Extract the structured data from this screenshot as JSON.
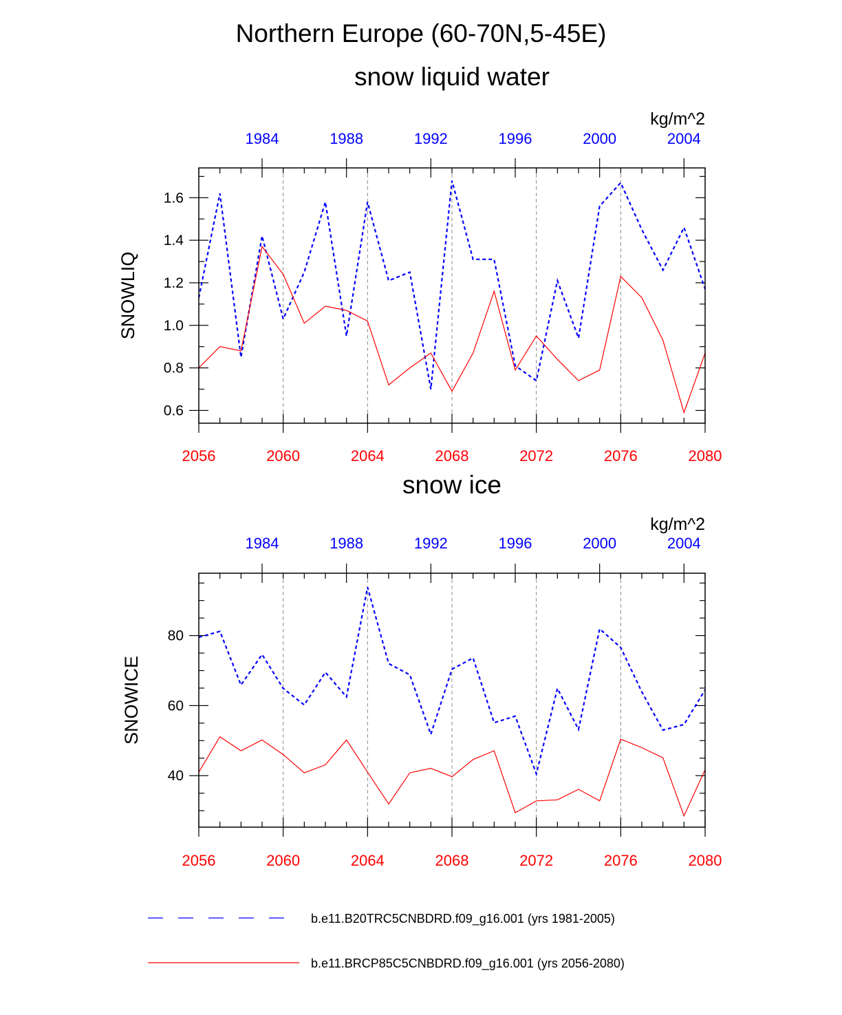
{
  "page_title": "Northern Europe (60-70N,5-45E)",
  "legend": {
    "hist_label": "b.e11.B20TRC5CNBDRD.f09_g16.001 (yrs 1981-2005)",
    "future_label": "b.e11.BRCP85C5CNBDRD.f09_g16.001 (yrs 2056-2080)"
  },
  "colors": {
    "hist": "#0000ff",
    "future": "#ff0000",
    "axis": "#000000",
    "grid": "#888888"
  },
  "chart_data": [
    {
      "type": "line",
      "title": "snow liquid water",
      "ylabel": "SNOWLIQ",
      "units": "kg/m^2",
      "ylim": [
        0.54,
        1.74
      ],
      "yticks": [
        0.6,
        0.8,
        1.0,
        1.2,
        1.4,
        1.6
      ],
      "ytick_labels": [
        "0.6",
        "0.8",
        "1.0",
        "1.2",
        "1.4",
        "1.6"
      ],
      "yminor_step": 0.1,
      "x_bottom": [
        2056,
        2057,
        2058,
        2059,
        2060,
        2061,
        2062,
        2063,
        2064,
        2065,
        2066,
        2067,
        2068,
        2069,
        2070,
        2071,
        2072,
        2073,
        2074,
        2075,
        2076,
        2077,
        2078,
        2079,
        2080
      ],
      "x_bottom_ticks": [
        "2056",
        "2060",
        "2064",
        "2068",
        "2072",
        "2076",
        "2080"
      ],
      "x_top": [
        1981,
        1982,
        1983,
        1984,
        1985,
        1986,
        1987,
        1988,
        1989,
        1990,
        1991,
        1992,
        1993,
        1994,
        1995,
        1996,
        1997,
        1998,
        1999,
        2000,
        2001,
        2002,
        2003,
        2004,
        2005
      ],
      "x_top_ticks": [
        "1984",
        "1988",
        "1992",
        "1996",
        "2000",
        "2004"
      ],
      "series": [
        {
          "name": "b.e11.B20TRC5CNBDRD.f09_g16.001 (yrs 1981-2005)",
          "axis": "top",
          "style": "dashed",
          "values": [
            1.13,
            1.62,
            0.85,
            1.42,
            1.03,
            1.25,
            1.58,
            0.95,
            1.58,
            1.21,
            1.25,
            0.7,
            1.68,
            1.31,
            1.31,
            0.81,
            0.74,
            1.21,
            0.94,
            1.56,
            1.67,
            1.45,
            1.26,
            1.46,
            1.17
          ]
        },
        {
          "name": "b.e11.BRCP85C5CNBDRD.f09_g16.001 (yrs 2056-2080)",
          "axis": "bottom",
          "style": "solid",
          "values": [
            0.8,
            0.9,
            0.88,
            1.37,
            1.24,
            1.01,
            1.09,
            1.07,
            1.02,
            0.72,
            0.8,
            0.87,
            0.69,
            0.87,
            1.16,
            0.79,
            0.95,
            0.84,
            0.74,
            0.79,
            1.23,
            1.13,
            0.93,
            0.59,
            0.87
          ]
        }
      ]
    },
    {
      "type": "line",
      "title": "snow ice",
      "ylabel": "SNOWICE",
      "units": "kg/m^2",
      "ylim": [
        25.3,
        97.8
      ],
      "yticks": [
        40,
        60,
        80
      ],
      "ytick_labels": [
        "40",
        "60",
        "80"
      ],
      "yminor_step": 5,
      "x_bottom": [
        2056,
        2057,
        2058,
        2059,
        2060,
        2061,
        2062,
        2063,
        2064,
        2065,
        2066,
        2067,
        2068,
        2069,
        2070,
        2071,
        2072,
        2073,
        2074,
        2075,
        2076,
        2077,
        2078,
        2079,
        2080
      ],
      "x_bottom_ticks": [
        "2056",
        "2060",
        "2064",
        "2068",
        "2072",
        "2076",
        "2080"
      ],
      "x_top": [
        1981,
        1982,
        1983,
        1984,
        1985,
        1986,
        1987,
        1988,
        1989,
        1990,
        1991,
        1992,
        1993,
        1994,
        1995,
        1996,
        1997,
        1998,
        1999,
        2000,
        2001,
        2002,
        2003,
        2004,
        2005
      ],
      "x_top_ticks": [
        "1984",
        "1988",
        "1992",
        "1996",
        "2000",
        "2004"
      ],
      "series": [
        {
          "name": "b.e11.B20TRC5CNBDRD.f09_g16.001 (yrs 1981-2005)",
          "axis": "top",
          "style": "dashed",
          "values": [
            79.5,
            81.2,
            65.9,
            74.6,
            64.9,
            60.2,
            69.5,
            62.5,
            93.8,
            72.0,
            68.8,
            51.8,
            70.4,
            73.6,
            55.1,
            57.0,
            40.5,
            64.9,
            53.2,
            81.9,
            76.6,
            63.9,
            53.0,
            54.6,
            64.5
          ]
        },
        {
          "name": "b.e11.BRCP85C5CNBDRD.f09_g16.001 (yrs 2056-2080)",
          "axis": "bottom",
          "style": "solid",
          "values": [
            41.0,
            51.1,
            47.1,
            50.2,
            46.0,
            40.8,
            43.1,
            50.2,
            41.0,
            31.9,
            40.8,
            42.1,
            39.7,
            44.6,
            47.1,
            29.4,
            32.8,
            33.1,
            36.1,
            32.8,
            50.4,
            48.0,
            45.1,
            28.5,
            41.7
          ]
        }
      ]
    }
  ]
}
